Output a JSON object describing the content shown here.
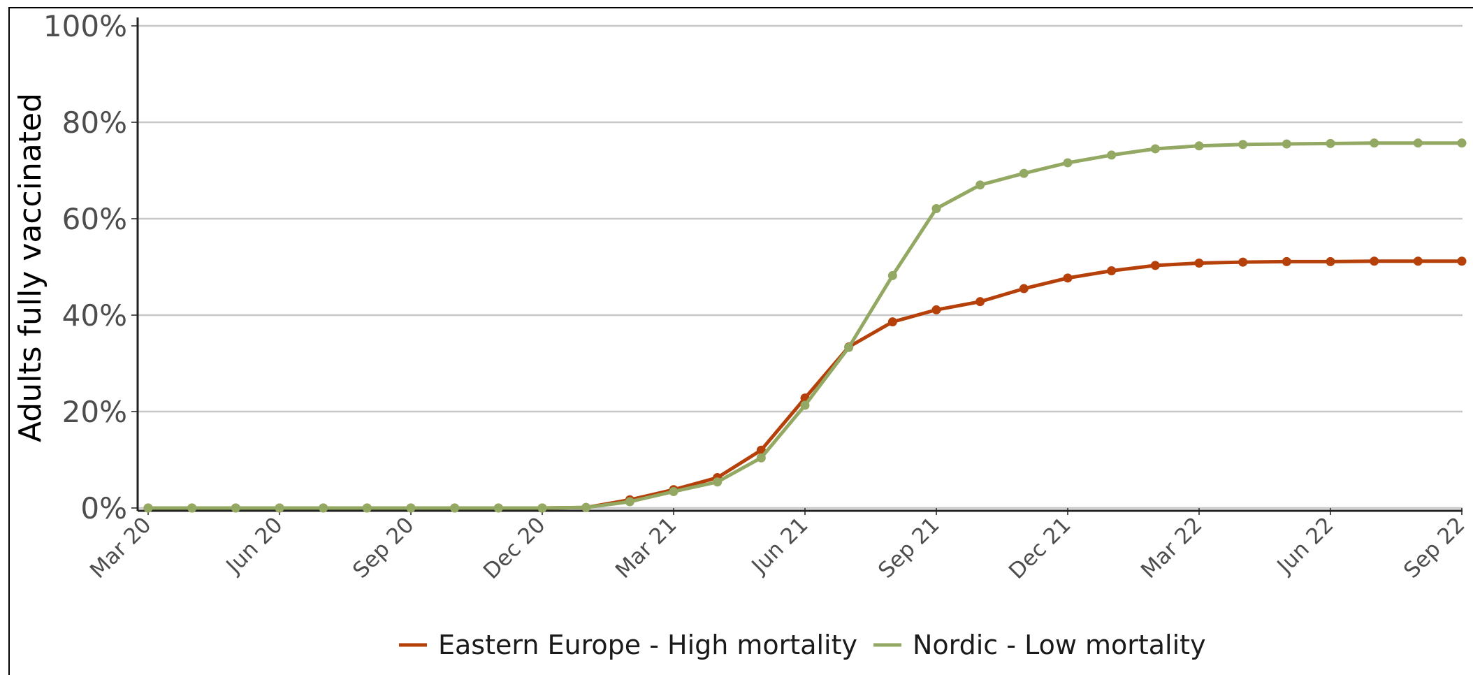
{
  "chart_data": {
    "type": "line",
    "title": "",
    "xlabel": "",
    "ylabel": "Adults fully vaccinated",
    "x_tick_labels": [
      "Mar 20",
      "Jun 20",
      "Sep 20",
      "Dec 20",
      "Mar 21",
      "Jun 21",
      "Sep 21",
      "Dec 21",
      "Mar 22",
      "Jun 22",
      "Sep 22"
    ],
    "y_tick_labels": [
      "0%",
      "20%",
      "40%",
      "60%",
      "80%",
      "100%"
    ],
    "ylim": [
      0,
      1
    ],
    "grid": "horizontal",
    "legend_position": "bottom",
    "x": [
      "2020-03",
      "2020-04",
      "2020-05",
      "2020-06",
      "2020-07",
      "2020-08",
      "2020-09",
      "2020-10",
      "2020-11",
      "2020-12",
      "2021-01",
      "2021-02",
      "2021-03",
      "2021-04",
      "2021-05",
      "2021-06",
      "2021-07",
      "2021-08",
      "2021-09",
      "2021-10",
      "2021-11",
      "2021-12",
      "2022-01",
      "2022-02",
      "2022-03",
      "2022-04",
      "2022-05",
      "2022-06",
      "2022-07",
      "2022-08",
      "2022-09"
    ],
    "series": [
      {
        "name": "Eastern Europe - High mortality",
        "color": "#b5400a",
        "values": [
          0,
          0,
          0,
          0,
          0,
          0,
          0,
          0,
          0,
          0,
          0.001,
          0.017,
          0.038,
          0.063,
          0.12,
          0.228,
          0.334,
          0.386,
          0.411,
          0.428,
          0.455,
          0.477,
          0.492,
          0.503,
          0.508,
          0.51,
          0.511,
          0.511,
          0.512,
          0.512,
          0.512
        ]
      },
      {
        "name": "Nordic - Low mortality",
        "color": "#93a862",
        "values": [
          0,
          0,
          0,
          0,
          0,
          0,
          0,
          0,
          0,
          0,
          0.001,
          0.013,
          0.034,
          0.054,
          0.104,
          0.213,
          0.333,
          0.482,
          0.621,
          0.67,
          0.694,
          0.716,
          0.732,
          0.745,
          0.751,
          0.754,
          0.755,
          0.756,
          0.757,
          0.757,
          0.757
        ]
      }
    ]
  }
}
